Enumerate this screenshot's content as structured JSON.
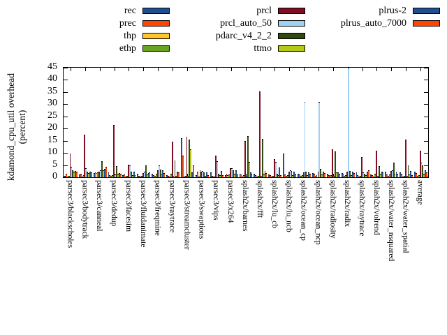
{
  "chart_data": {
    "type": "bar",
    "title": "",
    "ylabel_line1": "kdamond_cpu_util overhead",
    "ylabel_line2": "(percent)",
    "ylim": [
      0,
      45
    ],
    "yticks": [
      0,
      5,
      10,
      15,
      20,
      25,
      30,
      35,
      40,
      45
    ],
    "grid": false,
    "legend_position": "top-3-columns",
    "legend_columns": [
      [
        0,
        1,
        2,
        3
      ],
      [
        4,
        5,
        6,
        7
      ],
      [
        8,
        9
      ]
    ],
    "categories": [
      "parsec3/blackscholes",
      "parsec3/bodytrack",
      "parsec3/canneal",
      "parsec3/dedup",
      "parsec3/facesim",
      "parsec3/fluidanimate",
      "parsec3/freqmine",
      "parsec3/raytrace",
      "parsec3/streamcluster",
      "parsec3/swaptions",
      "parsec3/vips",
      "parsec3/x264",
      "splash2x/barnes",
      "splash2x/fft",
      "splash2x/lu_cb",
      "splash2x/lu_ncb",
      "splash2x/ocean_cp",
      "splash2x/ocean_ncp",
      "splash2x/radiosity",
      "splash2x/radix",
      "splash2x/raytrace",
      "splash2x/volrend",
      "splash2x/water_nsquared",
      "splash2x/water_spatial",
      "average"
    ],
    "series": [
      {
        "name": "rec",
        "color": "#1d4f91",
        "values": [
          0.6,
          1.2,
          1.7,
          2.0,
          0.8,
          1.3,
          1.5,
          0.8,
          16.0,
          0.8,
          2.0,
          1.0,
          1.5,
          1.5,
          1.2,
          9.7,
          1.5,
          1.8,
          1.5,
          1.8,
          2.0,
          1.2,
          2.2,
          2.0,
          2.2
        ]
      },
      {
        "name": "prec",
        "color": "#ff4500",
        "values": [
          1.5,
          1.4,
          1.9,
          1.0,
          1.2,
          0.5,
          1.0,
          0.6,
          9.0,
          2.2,
          0.5,
          1.5,
          1.2,
          1.0,
          0.8,
          1.2,
          1.2,
          1.3,
          1.0,
          1.5,
          0.8,
          1.0,
          1.2,
          1.3,
          1.8
        ]
      },
      {
        "name": "thp",
        "color": "#ffc425",
        "values": [
          0.3,
          0.4,
          1.8,
          0.5,
          0.3,
          0.3,
          0.5,
          0.4,
          0.4,
          0.4,
          0.3,
          0.8,
          0.4,
          0.4,
          0.4,
          0.5,
          0.6,
          0.6,
          0.5,
          0.5,
          0.4,
          0.4,
          0.5,
          0.4,
          0.6
        ]
      },
      {
        "name": "ethp",
        "color": "#67a421",
        "values": [
          0.5,
          0.8,
          2.0,
          0.8,
          0.5,
          0.5,
          1.5,
          1.5,
          0.5,
          2.8,
          0.4,
          1.2,
          0.8,
          0.6,
          0.6,
          0.8,
          0.8,
          1.0,
          0.8,
          0.8,
          0.6,
          1.5,
          1.2,
          0.6,
          0.9
        ]
      },
      {
        "name": "prcl",
        "color": "#7f0e24",
        "values": [
          9.7,
          17.5,
          2.4,
          21.5,
          5.3,
          1.6,
          3.0,
          14.5,
          16.5,
          2.4,
          9.0,
          3.6,
          15.0,
          35.3,
          7.4,
          2.2,
          2.0,
          2.4,
          11.5,
          2.2,
          8.2,
          11.0,
          2.6,
          15.5,
          10.8
        ]
      },
      {
        "name": "prcl_auto_50",
        "color": "#9fd1f5",
        "values": [
          4.2,
          3.6,
          2.8,
          1.2,
          5.0,
          2.2,
          5.0,
          0.5,
          0.5,
          2.6,
          6.6,
          3.8,
          0.5,
          0.5,
          6.4,
          3.0,
          31.0,
          31.0,
          0.5,
          45.0,
          2.0,
          0.5,
          2.8,
          0.5,
          6.0
        ]
      },
      {
        "name": "pdarc_v4_2_2",
        "color": "#2f4a0e",
        "values": [
          2.8,
          2.2,
          6.5,
          4.6,
          2.2,
          4.8,
          3.2,
          6.8,
          15.5,
          2.0,
          1.5,
          3.0,
          16.8,
          15.7,
          1.5,
          2.5,
          2.2,
          3.5,
          10.5,
          2.5,
          1.5,
          4.5,
          6.0,
          5.0,
          4.8
        ]
      },
      {
        "name": "ttmo",
        "color": "#b3c916",
        "values": [
          2.2,
          1.8,
          3.0,
          1.4,
          0.8,
          1.2,
          1.2,
          0.6,
          11.5,
          0.5,
          0.8,
          1.5,
          6.3,
          1.5,
          0.8,
          1.0,
          1.0,
          1.2,
          2.0,
          1.0,
          0.8,
          1.5,
          1.3,
          1.2,
          1.4
        ]
      },
      {
        "name": "plrus-2",
        "color": "#1d4f91",
        "values": [
          2.6,
          2.3,
          3.4,
          1.6,
          2.2,
          1.8,
          2.8,
          2.2,
          2.0,
          2.0,
          2.5,
          2.8,
          2.0,
          2.5,
          4.0,
          2.2,
          2.0,
          2.2,
          2.0,
          2.2,
          2.2,
          2.2,
          2.4,
          2.6,
          2.8
        ]
      },
      {
        "name": "plrus_auto_7000",
        "color": "#ff4500",
        "values": [
          2.3,
          2.0,
          4.2,
          1.3,
          1.0,
          2.0,
          1.8,
          2.0,
          5.0,
          1.0,
          1.0,
          1.2,
          1.5,
          1.8,
          1.0,
          1.5,
          1.5,
          1.6,
          1.5,
          1.8,
          2.8,
          2.0,
          1.4,
          1.0,
          2.0
        ]
      }
    ]
  }
}
